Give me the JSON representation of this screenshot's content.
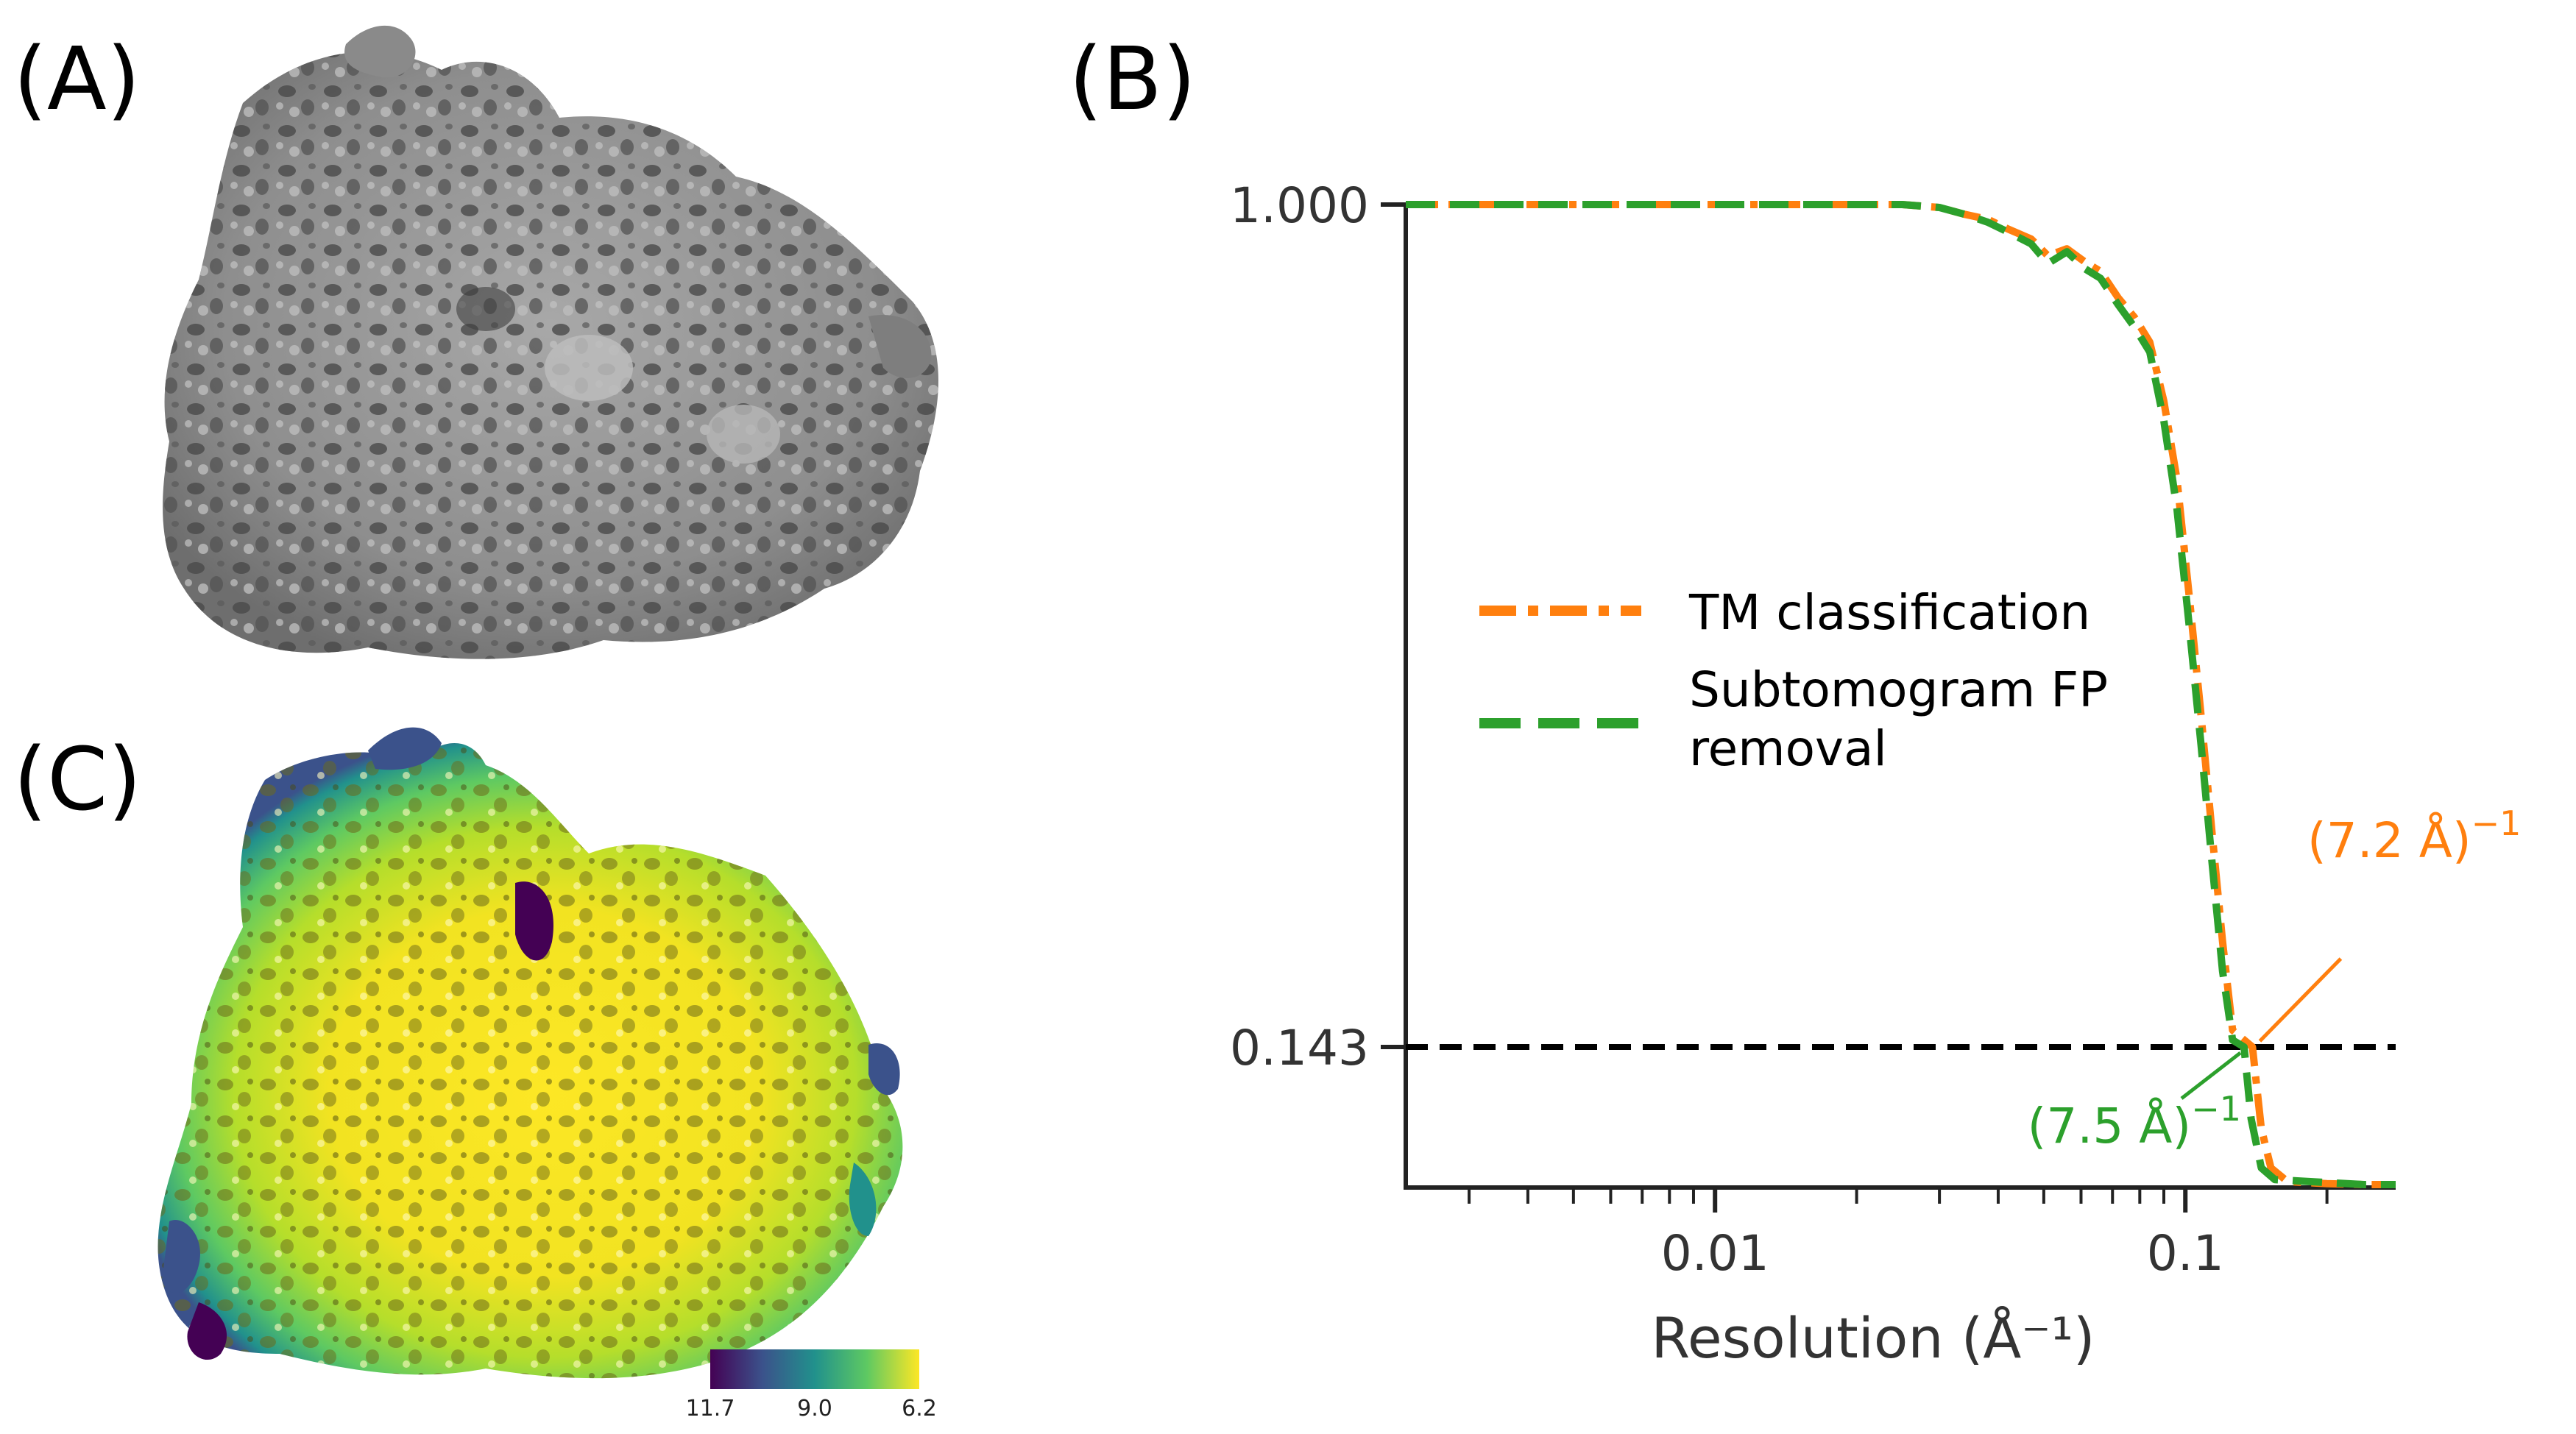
{
  "panels": {
    "a": "(A)",
    "b": "(B)",
    "c": "(C)"
  },
  "colorbar": {
    "ticks": [
      "11.7",
      "9.0",
      "6.2"
    ],
    "colors": [
      "#440154",
      "#3b528b",
      "#21918c",
      "#5ec962",
      "#fde725"
    ]
  },
  "chart_data": {
    "type": "line",
    "title": "",
    "xlabel": "Resolution (Å⁻¹)",
    "ylabel": "",
    "x_scale": "log",
    "xlim": [
      0.0022,
      0.28
    ],
    "ylim": [
      0.0,
      1.0
    ],
    "x_ticks": [
      0.01,
      0.1
    ],
    "x_tick_labels": [
      "0.01",
      "0.1"
    ],
    "y_ticks": [
      1.0,
      0.143
    ],
    "y_tick_labels": [
      "1.000",
      "0.143"
    ],
    "threshold": {
      "y": 0.143,
      "style": "dashed",
      "color": "#000000"
    },
    "legend": {
      "placement": "center-left"
    },
    "series": [
      {
        "name": "TM classification",
        "color": "#ff7f0e",
        "style": "dashdot",
        "points": [
          [
            0.0022,
            1.0
          ],
          [
            0.01,
            1.0
          ],
          [
            0.025,
            1.0
          ],
          [
            0.03,
            0.997
          ],
          [
            0.034,
            0.99
          ],
          [
            0.038,
            0.985
          ],
          [
            0.042,
            0.975
          ],
          [
            0.047,
            0.965
          ],
          [
            0.051,
            0.948
          ],
          [
            0.056,
            0.955
          ],
          [
            0.061,
            0.942
          ],
          [
            0.066,
            0.932
          ],
          [
            0.072,
            0.905
          ],
          [
            0.078,
            0.885
          ],
          [
            0.084,
            0.86
          ],
          [
            0.09,
            0.8
          ],
          [
            0.096,
            0.72
          ],
          [
            0.102,
            0.6
          ],
          [
            0.108,
            0.48
          ],
          [
            0.114,
            0.36
          ],
          [
            0.12,
            0.25
          ],
          [
            0.126,
            0.16
          ],
          [
            0.1389,
            0.143
          ],
          [
            0.145,
            0.06
          ],
          [
            0.152,
            0.02
          ],
          [
            0.165,
            0.006
          ],
          [
            0.2,
            0.004
          ],
          [
            0.24,
            0.003
          ],
          [
            0.28,
            0.003
          ]
        ]
      },
      {
        "name": "Subtomogram FP\nremoval",
        "color": "#2ca02c",
        "style": "dashed",
        "points": [
          [
            0.0022,
            1.0
          ],
          [
            0.01,
            1.0
          ],
          [
            0.025,
            1.0
          ],
          [
            0.03,
            0.997
          ],
          [
            0.034,
            0.99
          ],
          [
            0.038,
            0.982
          ],
          [
            0.042,
            0.972
          ],
          [
            0.047,
            0.96
          ],
          [
            0.051,
            0.94
          ],
          [
            0.056,
            0.952
          ],
          [
            0.061,
            0.935
          ],
          [
            0.066,
            0.925
          ],
          [
            0.072,
            0.898
          ],
          [
            0.078,
            0.875
          ],
          [
            0.084,
            0.85
          ],
          [
            0.09,
            0.78
          ],
          [
            0.096,
            0.69
          ],
          [
            0.102,
            0.57
          ],
          [
            0.108,
            0.45
          ],
          [
            0.114,
            0.33
          ],
          [
            0.12,
            0.22
          ],
          [
            0.126,
            0.15
          ],
          [
            0.1333,
            0.143
          ],
          [
            0.138,
            0.07
          ],
          [
            0.145,
            0.02
          ],
          [
            0.155,
            0.008
          ],
          [
            0.2,
            0.005
          ],
          [
            0.24,
            0.003
          ],
          [
            0.28,
            0.003
          ]
        ]
      }
    ],
    "annotations": [
      {
        "text": "(7.2 Å)−1",
        "base": "(7.2 Å)",
        "sup": "−1",
        "color": "#ff7f0e",
        "at": [
          0.1389,
          0.143
        ]
      },
      {
        "text": "(7.5 Å)−1",
        "base": "(7.5 Å)",
        "sup": "−1",
        "color": "#2ca02c",
        "at": [
          0.1333,
          0.143
        ]
      }
    ]
  }
}
